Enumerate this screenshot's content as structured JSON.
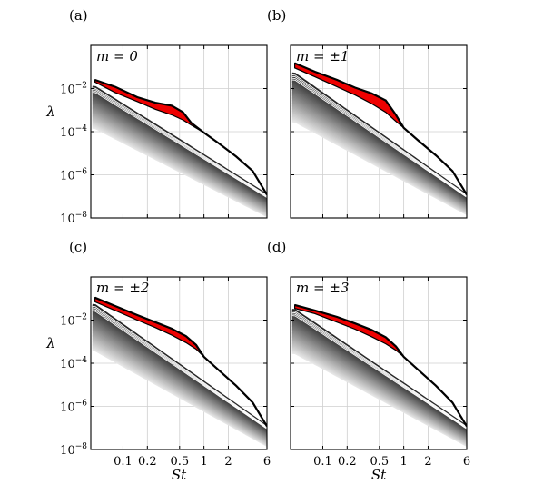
{
  "chart_data": [
    {
      "type": "line",
      "panel_label": "(a)",
      "mode_label": "m = 0",
      "x_scale": "log",
      "y_scale": "log",
      "xlim": [
        0.04,
        6
      ],
      "ylim": [
        1e-08,
        1
      ],
      "x_ticks": [
        0.1,
        0.2,
        0.5,
        1,
        2,
        6
      ],
      "y_ticks": [
        1e-08,
        1e-06,
        0.0001,
        0.01
      ],
      "grid": true,
      "leading_top": {
        "x": [
          0.045,
          0.08,
          0.15,
          0.25,
          0.4,
          0.55,
          0.7,
          1.0,
          1.5,
          2.5,
          4,
          6
        ],
        "y": [
          0.025,
          0.012,
          0.004,
          0.0022,
          0.0016,
          0.0008,
          0.00025,
          9e-05,
          3e-05,
          7e-06,
          1.5e-06,
          1.2e-07
        ]
      },
      "leading_bottom": {
        "x": [
          0.045,
          0.08,
          0.15,
          0.25,
          0.4,
          0.55,
          0.7,
          1.0
        ],
        "y": [
          0.02,
          0.0065,
          0.0025,
          0.0011,
          0.0006,
          0.00035,
          0.0002,
          9e-05
        ]
      },
      "suboptimal_top": {
        "x": [
          0.045,
          6
        ],
        "y": [
          0.012,
          1.2e-07
        ]
      },
      "suboptimal_bottom": {
        "x": [
          0.045,
          6
        ],
        "y": [
          0.00015,
          1.2e-08
        ]
      }
    },
    {
      "type": "line",
      "panel_label": "(b)",
      "mode_label": "m = ±1",
      "x_scale": "log",
      "y_scale": "log",
      "xlim": [
        0.04,
        6
      ],
      "ylim": [
        1e-08,
        1
      ],
      "x_ticks": [
        0.1,
        0.2,
        0.5,
        1,
        2,
        6
      ],
      "y_ticks": [
        1e-08,
        1e-06,
        0.0001,
        0.01
      ],
      "grid": true,
      "leading_top": {
        "x": [
          0.045,
          0.08,
          0.15,
          0.25,
          0.4,
          0.6,
          0.8,
          1.0,
          1.5,
          2.5,
          4,
          6
        ],
        "y": [
          0.15,
          0.06,
          0.025,
          0.011,
          0.006,
          0.0028,
          0.0006,
          0.00015,
          4e-05,
          8e-06,
          1.5e-06,
          1.2e-07
        ]
      },
      "leading_bottom": {
        "x": [
          0.045,
          0.08,
          0.15,
          0.25,
          0.4,
          0.6,
          0.8,
          1.0
        ],
        "y": [
          0.09,
          0.035,
          0.012,
          0.005,
          0.002,
          0.0008,
          0.0003,
          0.00015
        ]
      },
      "suboptimal_top": {
        "x": [
          0.045,
          6
        ],
        "y": [
          0.05,
          1.2e-07
        ]
      },
      "suboptimal_bottom": {
        "x": [
          0.045,
          6
        ],
        "y": [
          0.0003,
          1.5e-08
        ]
      }
    },
    {
      "type": "line",
      "panel_label": "(c)",
      "mode_label": "m = ±2",
      "x_scale": "log",
      "y_scale": "log",
      "xlim": [
        0.04,
        6
      ],
      "ylim": [
        1e-08,
        1
      ],
      "x_ticks": [
        0.1,
        0.2,
        0.5,
        1,
        2,
        6
      ],
      "y_ticks": [
        1e-08,
        1e-06,
        0.0001,
        0.01
      ],
      "grid": true,
      "leading_top": {
        "x": [
          0.045,
          0.08,
          0.15,
          0.25,
          0.4,
          0.6,
          0.8,
          1.0,
          1.5,
          2.5,
          4,
          6
        ],
        "y": [
          0.11,
          0.045,
          0.017,
          0.008,
          0.004,
          0.0018,
          0.0007,
          0.0002,
          5e-05,
          9e-06,
          1.5e-06,
          1.2e-07
        ]
      },
      "leading_bottom": {
        "x": [
          0.045,
          0.08,
          0.15,
          0.25,
          0.4,
          0.6,
          0.8,
          1.0
        ],
        "y": [
          0.07,
          0.028,
          0.01,
          0.0045,
          0.002,
          0.0009,
          0.00045,
          0.0002
        ]
      },
      "suboptimal_top": {
        "x": [
          0.045,
          6
        ],
        "y": [
          0.05,
          1.2e-07
        ]
      },
      "suboptimal_bottom": {
        "x": [
          0.045,
          6
        ],
        "y": [
          0.0004,
          1.5e-08
        ]
      }
    },
    {
      "type": "line",
      "panel_label": "(d)",
      "mode_label": "m = ±3",
      "x_scale": "log",
      "y_scale": "log",
      "xlim": [
        0.04,
        6
      ],
      "ylim": [
        1e-08,
        1
      ],
      "x_ticks": [
        0.1,
        0.2,
        0.5,
        1,
        2,
        6
      ],
      "y_ticks": [
        1e-08,
        1e-06,
        0.0001,
        0.01
      ],
      "grid": true,
      "leading_top": {
        "x": [
          0.045,
          0.08,
          0.15,
          0.25,
          0.4,
          0.6,
          0.8,
          1.0,
          1.5,
          2.5,
          4,
          6
        ],
        "y": [
          0.05,
          0.028,
          0.014,
          0.007,
          0.0035,
          0.0016,
          0.0006,
          0.0002,
          5e-05,
          9e-06,
          1.5e-06,
          1.2e-07
        ]
      },
      "leading_bottom": {
        "x": [
          0.045,
          0.08,
          0.15,
          0.25,
          0.4,
          0.6,
          0.8,
          1.0
        ],
        "y": [
          0.035,
          0.02,
          0.008,
          0.0038,
          0.0017,
          0.0008,
          0.0004,
          0.0002
        ]
      },
      "suboptimal_top": {
        "x": [
          0.045,
          6
        ],
        "y": [
          0.03,
          1.2e-07
        ]
      },
      "suboptimal_bottom": {
        "x": [
          0.045,
          6
        ],
        "y": [
          0.0003,
          1.5e-08
        ]
      }
    }
  ],
  "axes": {
    "xlabel": "St",
    "ylabel": "λ",
    "x_tick_labels": [
      "0.1",
      "0.2",
      "0.5",
      "1",
      "2",
      "6"
    ],
    "y_tick_labels": [
      {
        "base": "10",
        "exp": "−8"
      },
      {
        "base": "10",
        "exp": "−6"
      },
      {
        "base": "10",
        "exp": "−4"
      },
      {
        "base": "10",
        "exp": "−2"
      }
    ]
  },
  "colors": {
    "leading_band": "#ee0000",
    "frame": "#000000",
    "grid": "#cfcfcf"
  }
}
